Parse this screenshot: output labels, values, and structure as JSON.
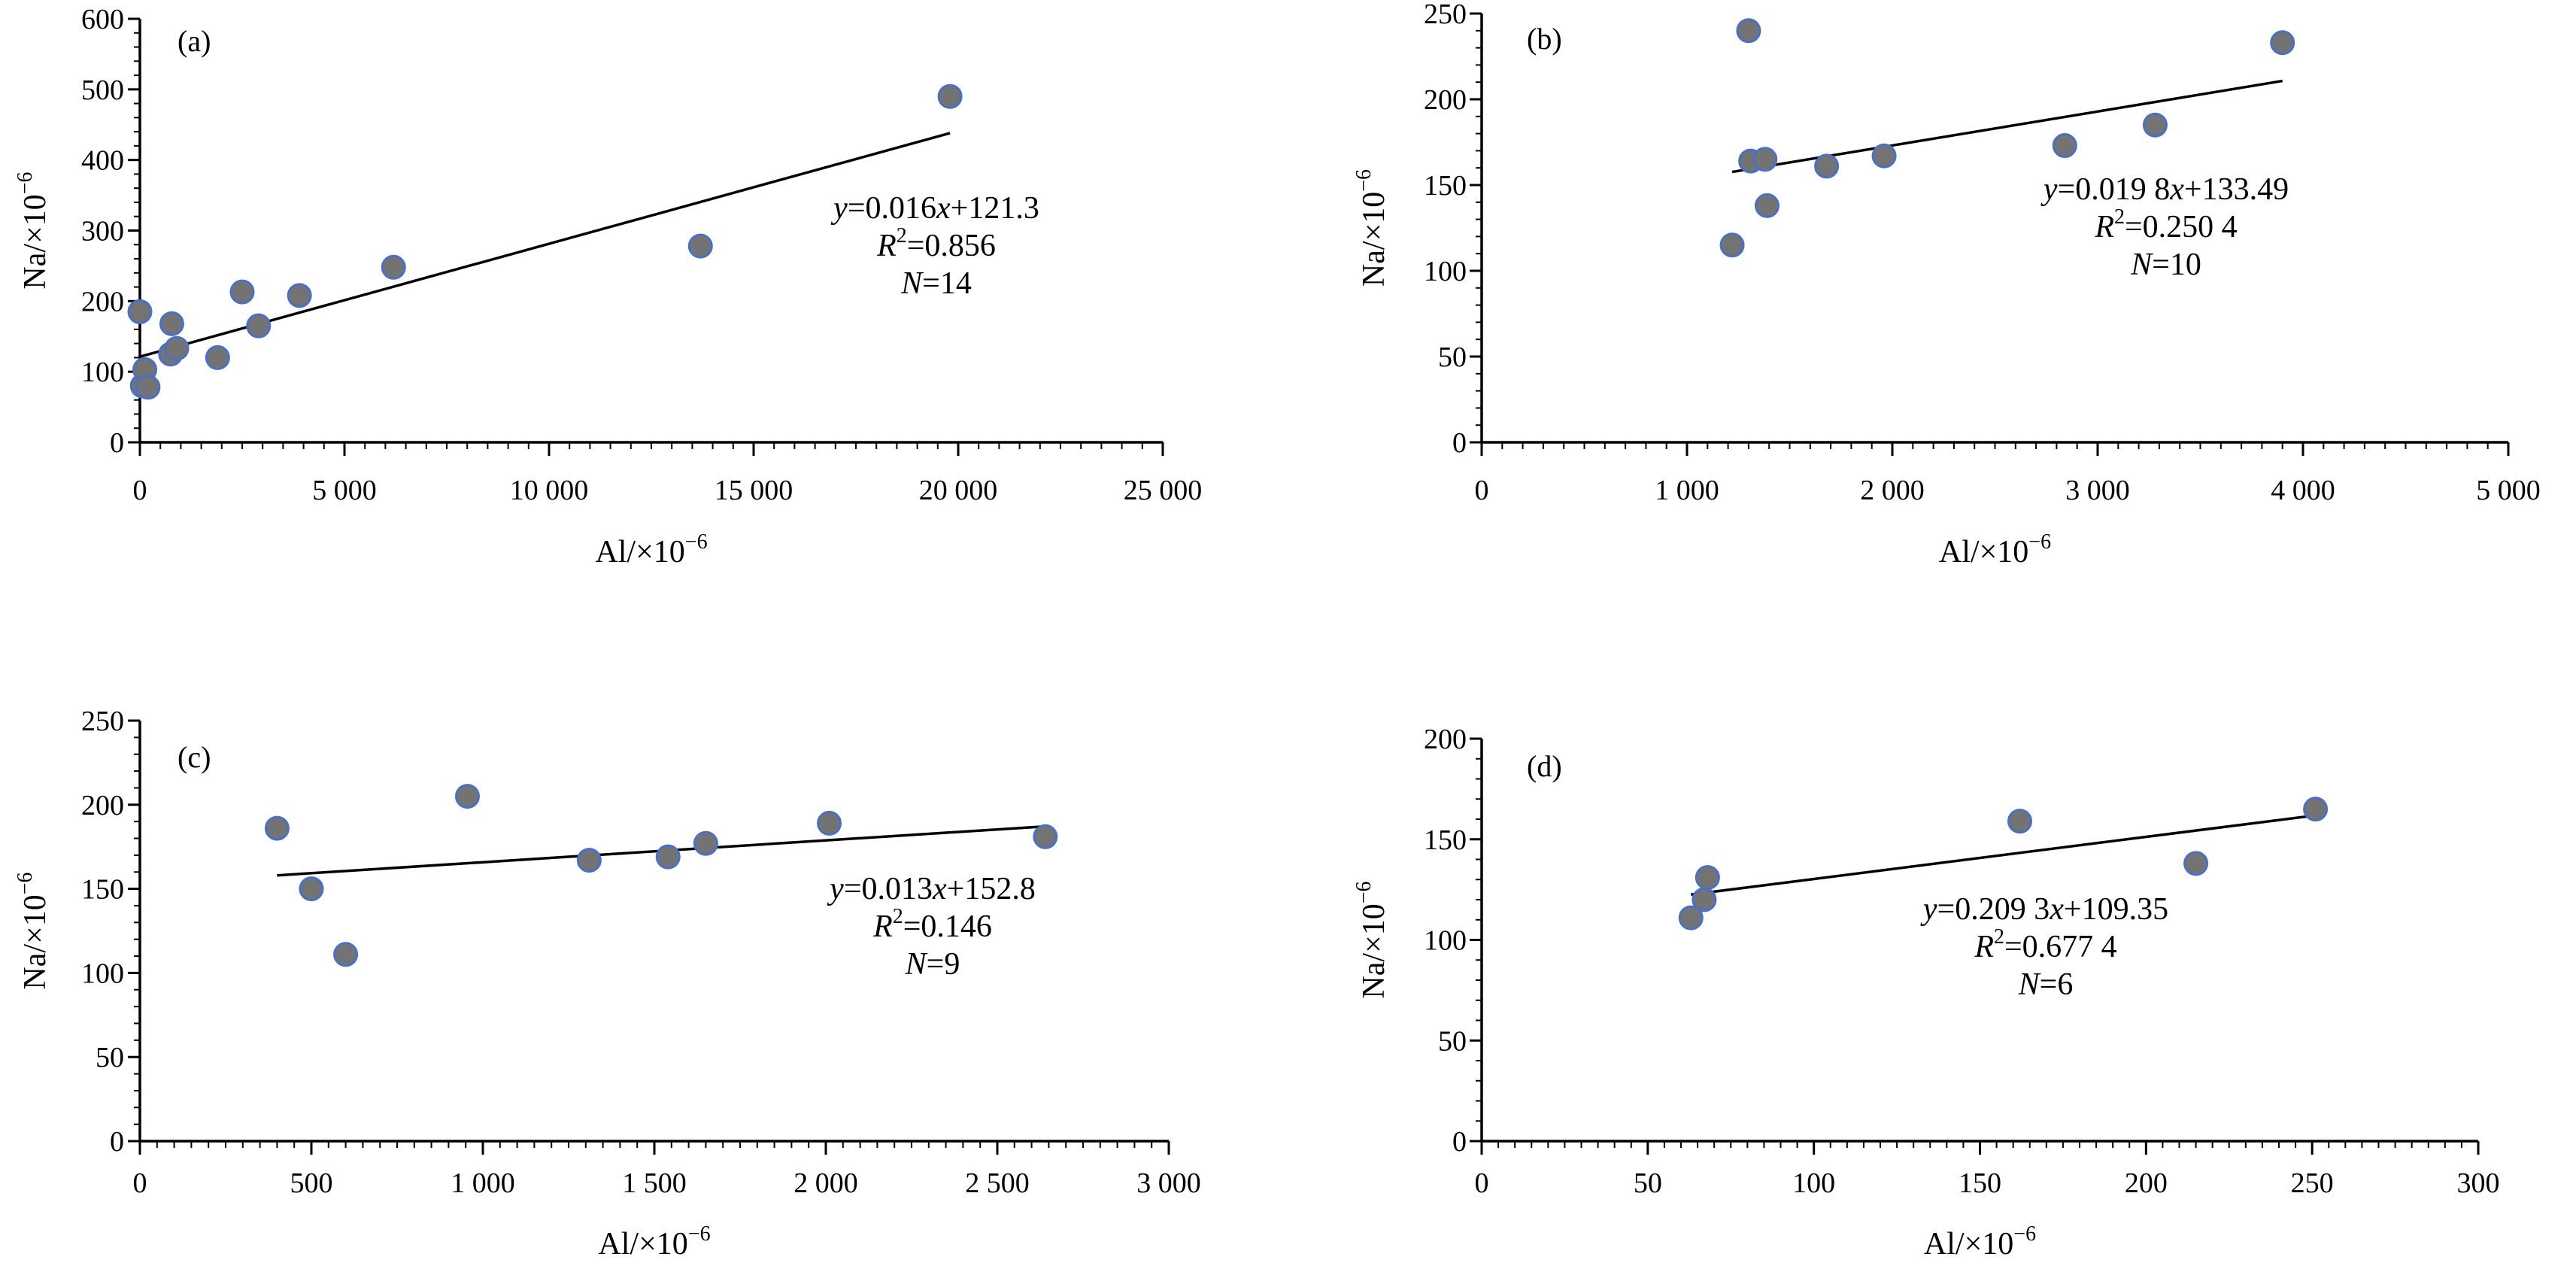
{
  "colors": {
    "point_fill": "#737373",
    "point_stroke": "#4a6fc7",
    "axis": "#000000",
    "fit_line": "#000000"
  },
  "chart_data": [
    {
      "type": "scatter",
      "panel": "(a)",
      "xlabel_prefix": "Al/×10",
      "xlabel_exp": "−6",
      "ylabel_prefix": "Na/×10",
      "ylabel_exp": "−6",
      "xlim": [
        0,
        25000
      ],
      "ylim": [
        0,
        600
      ],
      "xticks": [
        0,
        5000,
        10000,
        15000,
        20000,
        25000
      ],
      "xtick_labels": [
        "0",
        "5 000",
        "10 000",
        "15 000",
        "20 000",
        "25 000"
      ],
      "yticks": [
        0,
        100,
        200,
        300,
        400,
        500,
        600
      ],
      "ytick_labels": [
        "0",
        "100",
        "200",
        "300",
        "400",
        "500",
        "600"
      ],
      "points": [
        {
          "x": 0,
          "y": 185
        },
        {
          "x": 60,
          "y": 80
        },
        {
          "x": 120,
          "y": 103
        },
        {
          "x": 200,
          "y": 78
        },
        {
          "x": 750,
          "y": 125
        },
        {
          "x": 780,
          "y": 168
        },
        {
          "x": 900,
          "y": 133
        },
        {
          "x": 1900,
          "y": 120
        },
        {
          "x": 2500,
          "y": 213
        },
        {
          "x": 2900,
          "y": 165
        },
        {
          "x": 3900,
          "y": 208
        },
        {
          "x": 6200,
          "y": 248
        },
        {
          "x": 13700,
          "y": 278
        },
        {
          "x": 19800,
          "y": 490
        }
      ],
      "fit": {
        "slope": 0.016,
        "intercept": 121.3,
        "x_range": [
          0,
          19800
        ]
      },
      "equation": {
        "line1_a": "y",
        "line1_b": "=0.016",
        "line1_c": "x",
        "line1_d": "+121.3",
        "line2_a": "R",
        "line2_sup": "2",
        "line2_b": "=0.856",
        "line3_a": "N",
        "line3_b": "=14"
      }
    },
    {
      "type": "scatter",
      "panel": "(b)",
      "xlabel_prefix": "Al/×10",
      "xlabel_exp": "−6",
      "ylabel_prefix": "Na/×10",
      "ylabel_exp": "−6",
      "xlim": [
        0,
        5000
      ],
      "ylim": [
        0,
        250
      ],
      "xticks": [
        0,
        1000,
        2000,
        3000,
        4000,
        5000
      ],
      "xtick_labels": [
        "0",
        "1 000",
        "2 000",
        "3 000",
        "4 000",
        "5 000"
      ],
      "yticks": [
        0,
        50,
        100,
        150,
        200,
        250
      ],
      "ytick_labels": [
        "0",
        "50",
        "100",
        "150",
        "200",
        "250"
      ],
      "points": [
        {
          "x": 1220,
          "y": 115
        },
        {
          "x": 1300,
          "y": 240
        },
        {
          "x": 1310,
          "y": 164
        },
        {
          "x": 1380,
          "y": 165
        },
        {
          "x": 1390,
          "y": 138
        },
        {
          "x": 1680,
          "y": 161
        },
        {
          "x": 1960,
          "y": 167
        },
        {
          "x": 2840,
          "y": 173
        },
        {
          "x": 3280,
          "y": 185
        },
        {
          "x": 3900,
          "y": 233
        }
      ],
      "fit": {
        "slope": 0.0198,
        "intercept": 133.49,
        "x_range": [
          1220,
          3900
        ]
      },
      "equation": {
        "line1_a": "y",
        "line1_b": "=0.019 8",
        "line1_c": "x",
        "line1_d": "+133.49",
        "line2_a": "R",
        "line2_sup": "2",
        "line2_b": "=0.250 4",
        "line3_a": "N",
        "line3_b": "=10"
      }
    },
    {
      "type": "scatter",
      "panel": "(c)",
      "xlabel_prefix": "Al/×10",
      "xlabel_exp": "−6",
      "ylabel_prefix": "Na/×10",
      "ylabel_exp": "−6",
      "xlim": [
        0,
        3000
      ],
      "ylim": [
        0,
        250
      ],
      "xticks": [
        0,
        500,
        1000,
        1500,
        2000,
        2500,
        3000
      ],
      "xtick_labels": [
        "0",
        "500",
        "1 000",
        "1 500",
        "2 000",
        "2 500",
        "3 000"
      ],
      "yticks": [
        0,
        50,
        100,
        150,
        200,
        250
      ],
      "ytick_labels": [
        "0",
        "50",
        "100",
        "150",
        "200",
        "250"
      ],
      "points": [
        {
          "x": 400,
          "y": 186
        },
        {
          "x": 500,
          "y": 150
        },
        {
          "x": 600,
          "y": 111
        },
        {
          "x": 955,
          "y": 205
        },
        {
          "x": 1310,
          "y": 167
        },
        {
          "x": 1540,
          "y": 169
        },
        {
          "x": 1650,
          "y": 177
        },
        {
          "x": 2010,
          "y": 189
        },
        {
          "x": 2640,
          "y": 181
        }
      ],
      "fit": {
        "slope": 0.013,
        "intercept": 152.8,
        "x_range": [
          400,
          2640
        ]
      },
      "equation": {
        "line1_a": "y",
        "line1_b": "=0.013",
        "line1_c": "x",
        "line1_d": "+152.8",
        "line2_a": "R",
        "line2_sup": "2",
        "line2_b": "=0.146",
        "line3_a": "N",
        "line3_b": "=9"
      }
    },
    {
      "type": "scatter",
      "panel": "(d)",
      "xlabel_prefix": "Al/×10",
      "xlabel_exp": "−6",
      "ylabel_prefix": "Na/×10",
      "ylabel_exp": "−6",
      "xlim": [
        0,
        300
      ],
      "ylim": [
        0,
        200
      ],
      "xticks": [
        0,
        50,
        100,
        150,
        200,
        250,
        300
      ],
      "xtick_labels": [
        "0",
        "50",
        "100",
        "150",
        "200",
        "250",
        "300"
      ],
      "yticks": [
        0,
        50,
        100,
        150,
        200
      ],
      "ytick_labels": [
        "0",
        "50",
        "100",
        "150",
        "200"
      ],
      "points": [
        {
          "x": 63,
          "y": 111
        },
        {
          "x": 67,
          "y": 120
        },
        {
          "x": 68,
          "y": 131
        },
        {
          "x": 162,
          "y": 159
        },
        {
          "x": 215,
          "y": 138
        },
        {
          "x": 251,
          "y": 165
        }
      ],
      "fit": {
        "slope": 0.2093,
        "intercept": 109.35,
        "x_range": [
          63,
          251
        ]
      },
      "equation": {
        "line1_a": "y",
        "line1_b": "=0.209 3",
        "line1_c": "x",
        "line1_d": "+109.35",
        "line2_a": "R",
        "line2_sup": "2",
        "line2_b": "=0.677 4",
        "line3_a": "N",
        "line3_b": "=6"
      }
    }
  ]
}
